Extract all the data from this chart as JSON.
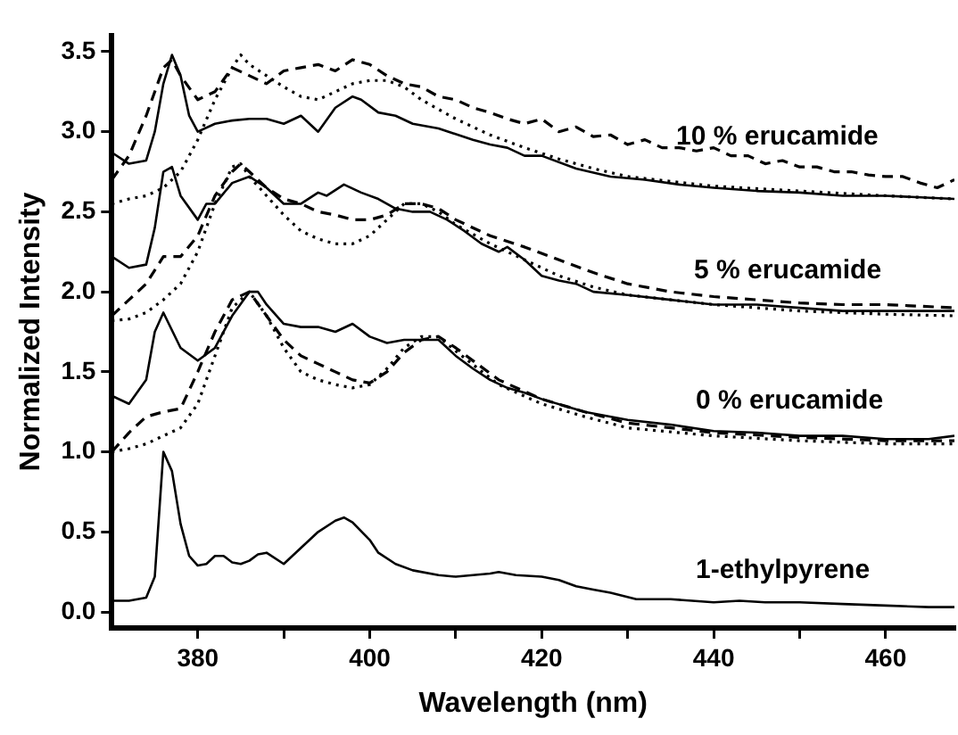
{
  "chart_data": {
    "type": "line",
    "xlabel": "Wavelength (nm)",
    "ylabel": "Normalized Intensity",
    "xlim": [
      370,
      468
    ],
    "ylim": [
      -0.1,
      3.6
    ],
    "xticks": [
      380,
      {
        "value": 390,
        "label": null
      },
      400,
      {
        "value": 410,
        "label": null
      },
      420,
      {
        "value": 430,
        "label": null
      },
      440,
      {
        "value": 450,
        "label": null
      },
      460
    ],
    "yticks": [
      {
        "value": 0,
        "label": "0.0"
      },
      0.5,
      {
        "value": 1,
        "label": "1.0"
      },
      1.5,
      {
        "value": 2,
        "label": "2.0"
      },
      2.5,
      {
        "value": 3,
        "label": "3.0"
      },
      3.5
    ],
    "grid": false,
    "legend": false,
    "marker": "none",
    "series": [
      {
        "color": "#000000",
        "line_style": "solid",
        "x": [
          370,
          372,
          374,
          375,
          376,
          377,
          378,
          379,
          380,
          381,
          382,
          383,
          384,
          385,
          386,
          387,
          388,
          390,
          392,
          394,
          396,
          397,
          398,
          400,
          401,
          403,
          405,
          408,
          410,
          412,
          414,
          415,
          417,
          420,
          422,
          424,
          426,
          428,
          431,
          435,
          440,
          443,
          446,
          450,
          455,
          460,
          465,
          468
        ],
        "values": [
          0.07,
          0.07,
          0.09,
          0.22,
          1.0,
          0.88,
          0.55,
          0.35,
          0.29,
          0.3,
          0.35,
          0.35,
          0.31,
          0.3,
          0.32,
          0.36,
          0.37,
          0.3,
          0.4,
          0.5,
          0.57,
          0.59,
          0.56,
          0.45,
          0.37,
          0.3,
          0.26,
          0.23,
          0.22,
          0.23,
          0.24,
          0.25,
          0.23,
          0.22,
          0.2,
          0.16,
          0.14,
          0.12,
          0.08,
          0.08,
          0.06,
          0.07,
          0.06,
          0.06,
          0.05,
          0.04,
          0.03,
          0.03
        ]
      },
      {
        "color": "#000000",
        "line_style": "solid",
        "x": [
          370,
          372,
          374,
          375,
          376,
          378,
          380,
          382,
          384,
          386,
          387,
          388,
          390,
          392,
          394,
          396,
          398,
          400,
          402,
          404,
          406,
          408,
          410,
          412,
          414,
          416,
          418,
          420,
          425,
          430,
          435,
          440,
          445,
          450,
          455,
          460,
          465,
          468
        ],
        "values": [
          1.35,
          1.3,
          1.45,
          1.75,
          1.87,
          1.65,
          1.57,
          1.65,
          1.85,
          2.0,
          2.0,
          1.92,
          1.8,
          1.78,
          1.78,
          1.75,
          1.8,
          1.72,
          1.68,
          1.7,
          1.7,
          1.7,
          1.6,
          1.52,
          1.45,
          1.4,
          1.37,
          1.33,
          1.25,
          1.2,
          1.17,
          1.13,
          1.12,
          1.1,
          1.1,
          1.08,
          1.08,
          1.1
        ]
      },
      {
        "color": "#000000",
        "line_style": "dashed",
        "x": [
          370,
          372,
          374,
          376,
          378,
          380,
          382,
          384,
          386,
          388,
          390,
          392,
          394,
          396,
          398,
          400,
          402,
          404,
          406,
          408,
          410,
          415,
          420,
          425,
          430,
          440,
          450,
          460,
          468
        ],
        "values": [
          1.0,
          1.12,
          1.22,
          1.25,
          1.27,
          1.5,
          1.75,
          1.95,
          2.0,
          1.85,
          1.7,
          1.6,
          1.55,
          1.5,
          1.45,
          1.43,
          1.5,
          1.62,
          1.7,
          1.72,
          1.65,
          1.45,
          1.33,
          1.25,
          1.18,
          1.12,
          1.09,
          1.07,
          1.07
        ]
      },
      {
        "color": "#000000",
        "line_style": "dotted",
        "x": [
          370,
          372,
          374,
          376,
          378,
          380,
          382,
          384,
          386,
          388,
          390,
          392,
          394,
          396,
          398,
          400,
          402,
          404,
          406,
          408,
          410,
          415,
          420,
          425,
          430,
          440,
          450,
          460,
          468
        ],
        "values": [
          1.0,
          1.02,
          1.05,
          1.1,
          1.15,
          1.3,
          1.6,
          1.9,
          2.0,
          1.85,
          1.65,
          1.5,
          1.45,
          1.42,
          1.4,
          1.42,
          1.52,
          1.65,
          1.72,
          1.72,
          1.63,
          1.42,
          1.3,
          1.22,
          1.15,
          1.1,
          1.07,
          1.05,
          1.05
        ]
      },
      {
        "color": "#000000",
        "line_style": "solid",
        "x": [
          370,
          372,
          374,
          375,
          376,
          377,
          378,
          380,
          381,
          382,
          384,
          386,
          388,
          390,
          392,
          394,
          395,
          397,
          399,
          401,
          403,
          405,
          407,
          409,
          411,
          413,
          415,
          416,
          418,
          420,
          422,
          424,
          426,
          430,
          435,
          440,
          445,
          450,
          455,
          460,
          465,
          468
        ],
        "values": [
          2.22,
          2.15,
          2.17,
          2.4,
          2.75,
          2.78,
          2.6,
          2.45,
          2.55,
          2.55,
          2.68,
          2.72,
          2.65,
          2.55,
          2.55,
          2.62,
          2.6,
          2.67,
          2.62,
          2.58,
          2.52,
          2.5,
          2.5,
          2.45,
          2.38,
          2.3,
          2.25,
          2.28,
          2.2,
          2.1,
          2.07,
          2.05,
          2.0,
          1.98,
          1.95,
          1.92,
          1.92,
          1.9,
          1.88,
          1.88,
          1.88,
          1.88
        ]
      },
      {
        "color": "#000000",
        "line_style": "dashed",
        "x": [
          370,
          372,
          374,
          376,
          378,
          380,
          382,
          384,
          385,
          386,
          388,
          390,
          392,
          394,
          396,
          398,
          400,
          402,
          404,
          406,
          408,
          410,
          414,
          418,
          422,
          426,
          430,
          435,
          440,
          445,
          450,
          455,
          460,
          468
        ],
        "values": [
          1.85,
          1.95,
          2.05,
          2.22,
          2.22,
          2.35,
          2.6,
          2.75,
          2.8,
          2.75,
          2.65,
          2.58,
          2.55,
          2.5,
          2.48,
          2.45,
          2.45,
          2.48,
          2.55,
          2.55,
          2.52,
          2.45,
          2.35,
          2.28,
          2.2,
          2.12,
          2.05,
          2.0,
          1.97,
          1.95,
          1.93,
          1.92,
          1.92,
          1.9
        ]
      },
      {
        "color": "#000000",
        "line_style": "dotted",
        "x": [
          370,
          372,
          374,
          376,
          378,
          380,
          382,
          384,
          385,
          386,
          388,
          390,
          392,
          394,
          396,
          398,
          400,
          402,
          404,
          406,
          408,
          410,
          414,
          418,
          422,
          426,
          430,
          440,
          450,
          460,
          468
        ],
        "values": [
          1.82,
          1.83,
          1.87,
          1.95,
          2.05,
          2.25,
          2.55,
          2.78,
          2.8,
          2.72,
          2.6,
          2.48,
          2.38,
          2.33,
          2.3,
          2.3,
          2.35,
          2.45,
          2.55,
          2.55,
          2.5,
          2.42,
          2.3,
          2.2,
          2.1,
          2.03,
          1.98,
          1.92,
          1.88,
          1.86,
          1.85
        ]
      },
      {
        "color": "#000000",
        "line_style": "solid",
        "x": [
          370,
          372,
          374,
          375,
          376,
          377,
          378,
          379,
          380,
          382,
          384,
          386,
          388,
          390,
          392,
          394,
          396,
          398,
          399,
          401,
          403,
          405,
          408,
          412,
          414,
          416,
          418,
          420,
          424,
          428,
          432,
          436,
          440,
          445,
          450,
          455,
          460,
          468
        ],
        "values": [
          2.87,
          2.8,
          2.82,
          3.0,
          3.3,
          3.48,
          3.35,
          3.1,
          3.0,
          3.05,
          3.07,
          3.08,
          3.08,
          3.05,
          3.1,
          3.0,
          3.15,
          3.22,
          3.2,
          3.12,
          3.1,
          3.05,
          3.02,
          2.95,
          2.92,
          2.9,
          2.85,
          2.85,
          2.77,
          2.72,
          2.7,
          2.67,
          2.65,
          2.63,
          2.62,
          2.6,
          2.6,
          2.58
        ]
      },
      {
        "color": "#000000",
        "line_style": "dashed",
        "x": [
          370,
          372,
          374,
          376,
          377,
          378,
          380,
          382,
          384,
          386,
          388,
          390,
          392,
          394,
          396,
          398,
          400,
          402,
          404,
          406,
          408,
          410,
          412,
          414,
          416,
          418,
          420,
          422,
          424,
          426,
          428,
          430,
          432,
          434,
          436,
          438,
          440,
          442,
          444,
          446,
          448,
          450,
          452,
          454,
          456,
          458,
          460,
          462,
          464,
          466,
          468
        ],
        "values": [
          2.7,
          2.85,
          3.1,
          3.4,
          3.45,
          3.35,
          3.2,
          3.25,
          3.4,
          3.35,
          3.3,
          3.38,
          3.4,
          3.42,
          3.38,
          3.45,
          3.42,
          3.35,
          3.3,
          3.28,
          3.22,
          3.2,
          3.15,
          3.12,
          3.08,
          3.05,
          3.08,
          3.0,
          3.03,
          2.97,
          2.98,
          2.92,
          2.95,
          2.9,
          2.9,
          2.88,
          2.9,
          2.85,
          2.85,
          2.8,
          2.82,
          2.78,
          2.78,
          2.75,
          2.75,
          2.73,
          2.72,
          2.72,
          2.68,
          2.65,
          2.7
        ]
      },
      {
        "color": "#000000",
        "line_style": "dotted",
        "x": [
          370,
          372,
          374,
          376,
          378,
          380,
          382,
          384,
          385,
          386,
          388,
          390,
          392,
          394,
          396,
          398,
          400,
          402,
          404,
          406,
          410,
          414,
          418,
          422,
          426,
          430,
          440,
          450,
          460,
          468
        ],
        "values": [
          2.55,
          2.58,
          2.6,
          2.65,
          2.75,
          2.95,
          3.2,
          3.4,
          3.48,
          3.42,
          3.35,
          3.28,
          3.22,
          3.2,
          3.25,
          3.3,
          3.32,
          3.32,
          3.28,
          3.2,
          3.08,
          2.98,
          2.9,
          2.83,
          2.77,
          2.72,
          2.66,
          2.63,
          2.6,
          2.58
        ]
      }
    ],
    "annotations": [
      "10 % erucamide",
      "5 % erucamide",
      "0 % erucamide",
      "1-ethylpyrene"
    ]
  }
}
